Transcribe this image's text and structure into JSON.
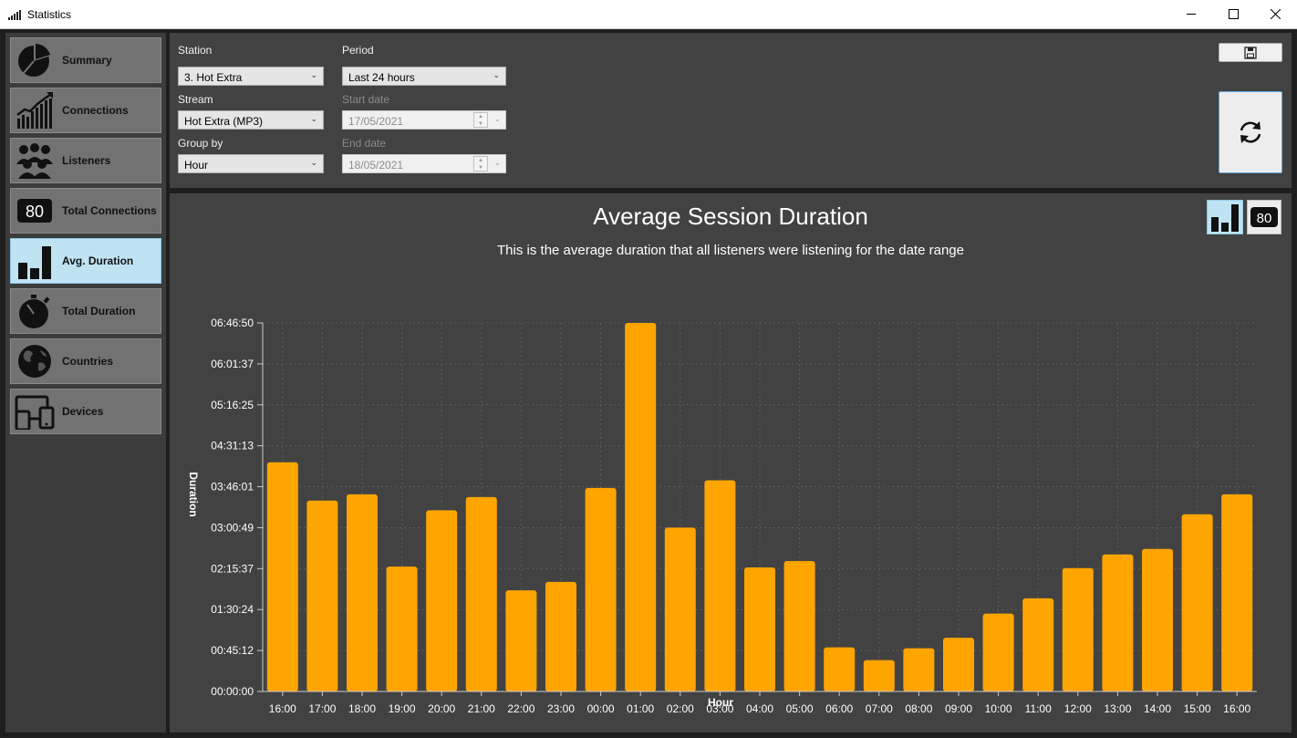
{
  "window": {
    "title": "Statistics"
  },
  "sidebar": {
    "items": [
      {
        "label": "Summary",
        "icon": "pie-chart-icon",
        "active": false
      },
      {
        "label": "Connections",
        "icon": "trend-chart-icon",
        "active": false
      },
      {
        "label": "Listeners",
        "icon": "people-icon",
        "active": false
      },
      {
        "label": "Total Connections",
        "icon": "counter-80-icon",
        "active": false
      },
      {
        "label": "Avg. Duration",
        "icon": "bar-chart-icon",
        "active": true
      },
      {
        "label": "Total Duration",
        "icon": "stopwatch-icon",
        "active": false
      },
      {
        "label": "Countries",
        "icon": "globe-icon",
        "active": false
      },
      {
        "label": "Devices",
        "icon": "devices-icon",
        "active": false
      }
    ]
  },
  "controls": {
    "station_label": "Station",
    "station_value": "3. Hot Extra",
    "stream_label": "Stream",
    "stream_value": "Hot Extra (MP3)",
    "groupby_label": "Group by",
    "groupby_value": "Hour",
    "period_label": "Period",
    "period_value": "Last 24 hours",
    "start_label": "Start date",
    "start_value": "17/05/2021",
    "end_label": "End date",
    "end_value": "18/05/2021"
  },
  "view_toggle": {
    "number_label": "80"
  },
  "chart_data": {
    "type": "bar",
    "title": "Average Session Duration",
    "subtitle": "This is the average duration that all listeners were listening for the date range",
    "xlabel": "Hour",
    "ylabel": "Duration",
    "bar_color": "#ffa500",
    "ylim": [
      0,
      24410
    ],
    "y_ticks": [
      "00:00:00",
      "00:45:12",
      "01:30:24",
      "02:15:37",
      "03:00:49",
      "03:46:01",
      "04:31:13",
      "05:16:25",
      "06:01:37",
      "06:46:50"
    ],
    "grid": true,
    "categories": [
      "16:00",
      "17:00",
      "18:00",
      "19:00",
      "20:00",
      "21:00",
      "22:00",
      "23:00",
      "00:00",
      "01:00",
      "02:00",
      "03:00",
      "04:00",
      "05:00",
      "06:00",
      "07:00",
      "08:00",
      "09:00",
      "10:00",
      "11:00",
      "12:00",
      "13:00",
      "14:00",
      "15:00",
      "16:00"
    ],
    "values": [
      15180,
      12640,
      13060,
      8270,
      12000,
      12880,
      6700,
      7260,
      13480,
      24410,
      10850,
      13990,
      8220,
      8640,
      2920,
      2080,
      2860,
      3560,
      5160,
      6170,
      8170,
      9080,
      9440,
      11740,
      13060
    ]
  }
}
